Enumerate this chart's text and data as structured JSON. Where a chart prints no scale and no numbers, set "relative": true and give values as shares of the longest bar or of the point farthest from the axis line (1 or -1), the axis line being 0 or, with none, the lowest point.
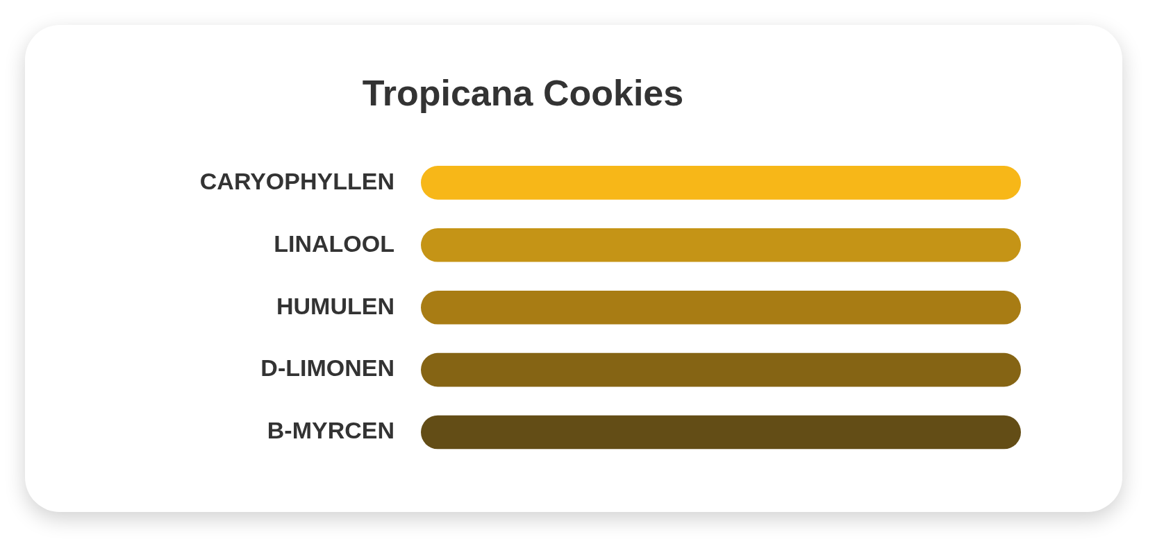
{
  "chart_data": {
    "type": "bar",
    "orientation": "horizontal",
    "relative": true,
    "title": "Tropicana Cookies",
    "categories": [
      "CARYOPHYLLEN",
      "LINALOOL",
      "HUMULEN",
      "D-LIMONEN",
      "B-MYRCEN"
    ],
    "values": [
      1,
      1,
      1,
      1,
      1
    ],
    "colors": [
      "#f7b718",
      "#c59416",
      "#a87c14",
      "#856414",
      "#634d16"
    ],
    "legend": false
  }
}
